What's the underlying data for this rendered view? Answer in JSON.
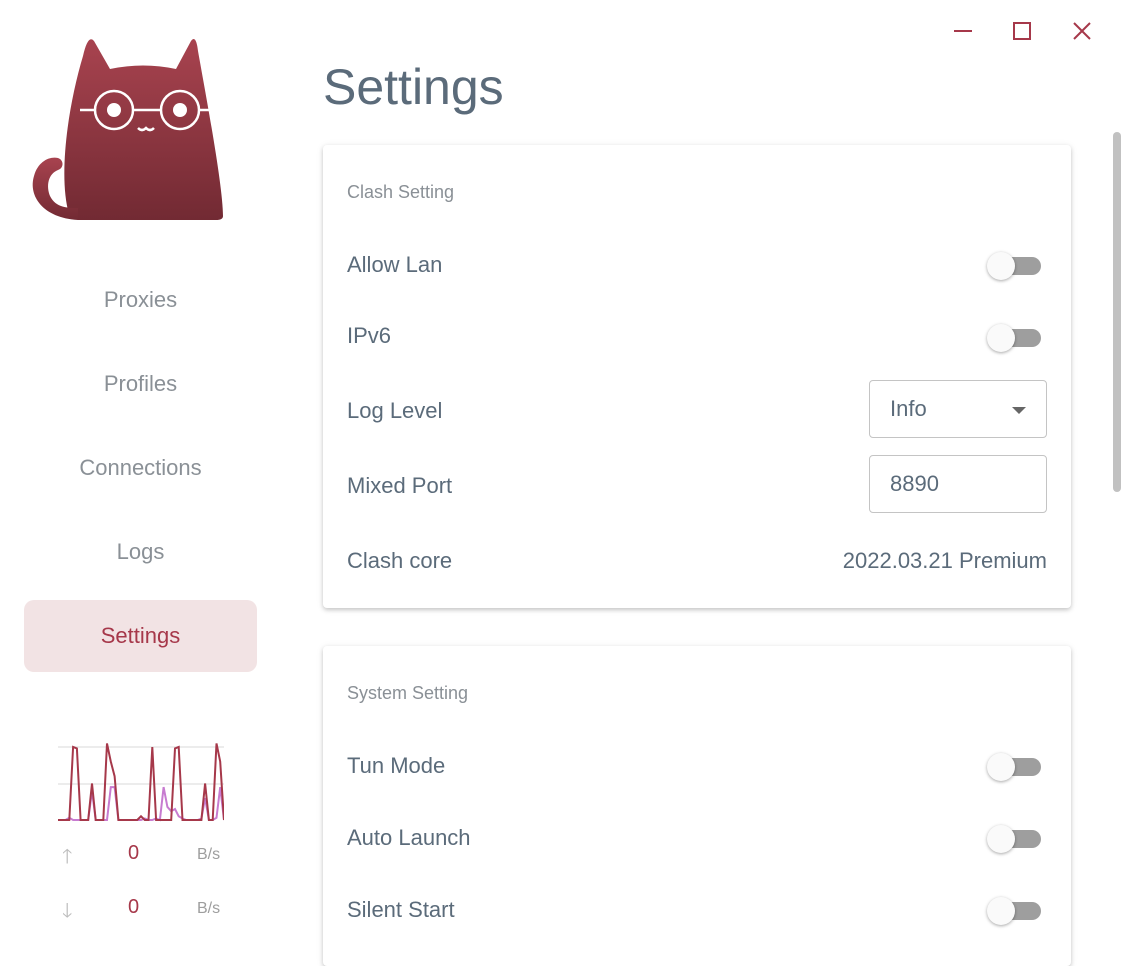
{
  "window": {
    "minimize_icon": "minimize-icon",
    "maximize_icon": "maximize-icon",
    "close_icon": "close-icon",
    "accent": "#a6384a"
  },
  "sidebar": {
    "items": [
      {
        "label": "Proxies",
        "active": false
      },
      {
        "label": "Profiles",
        "active": false
      },
      {
        "label": "Connections",
        "active": false
      },
      {
        "label": "Logs",
        "active": false
      },
      {
        "label": "Settings",
        "active": true
      }
    ],
    "traffic": {
      "upload_value": "0",
      "upload_unit": "B/s",
      "download_value": "0",
      "download_unit": "B/s",
      "upload_series": [
        0,
        0,
        0,
        0,
        100,
        98,
        0,
        0,
        0,
        50,
        0,
        0,
        0,
        105,
        80,
        60,
        0,
        0,
        0,
        0,
        0,
        0,
        5,
        0,
        0,
        100,
        0,
        0,
        0,
        0,
        0,
        98,
        100,
        0,
        0,
        0,
        0,
        0,
        0,
        50,
        0,
        0,
        105,
        80,
        0
      ],
      "download_series": [
        0,
        0,
        0,
        3,
        0,
        0,
        0,
        0,
        0,
        40,
        0,
        0,
        0,
        0,
        45,
        45,
        0,
        0,
        0,
        0,
        0,
        0,
        0,
        2,
        0,
        0,
        2,
        0,
        45,
        18,
        12,
        15,
        5,
        2,
        0,
        0,
        0,
        0,
        2,
        30,
        0,
        0,
        3,
        45,
        0
      ],
      "upload_color": "#a6384a",
      "download_color": "#c77bd0"
    }
  },
  "page": {
    "title": "Settings"
  },
  "clash_setting": {
    "title": "Clash Setting",
    "allow_lan": {
      "label": "Allow Lan",
      "on": false
    },
    "ipv6": {
      "label": "IPv6",
      "on": false
    },
    "log_level": {
      "label": "Log Level",
      "value": "Info"
    },
    "mixed_port": {
      "label": "Mixed Port",
      "value": "8890"
    },
    "clash_core": {
      "label": "Clash core",
      "value": "2022.03.21 Premium"
    }
  },
  "system_setting": {
    "title": "System Setting",
    "tun_mode": {
      "label": "Tun Mode",
      "on": false
    },
    "auto_launch": {
      "label": "Auto Launch",
      "on": false
    },
    "silent_start": {
      "label": "Silent Start",
      "on": false
    }
  }
}
